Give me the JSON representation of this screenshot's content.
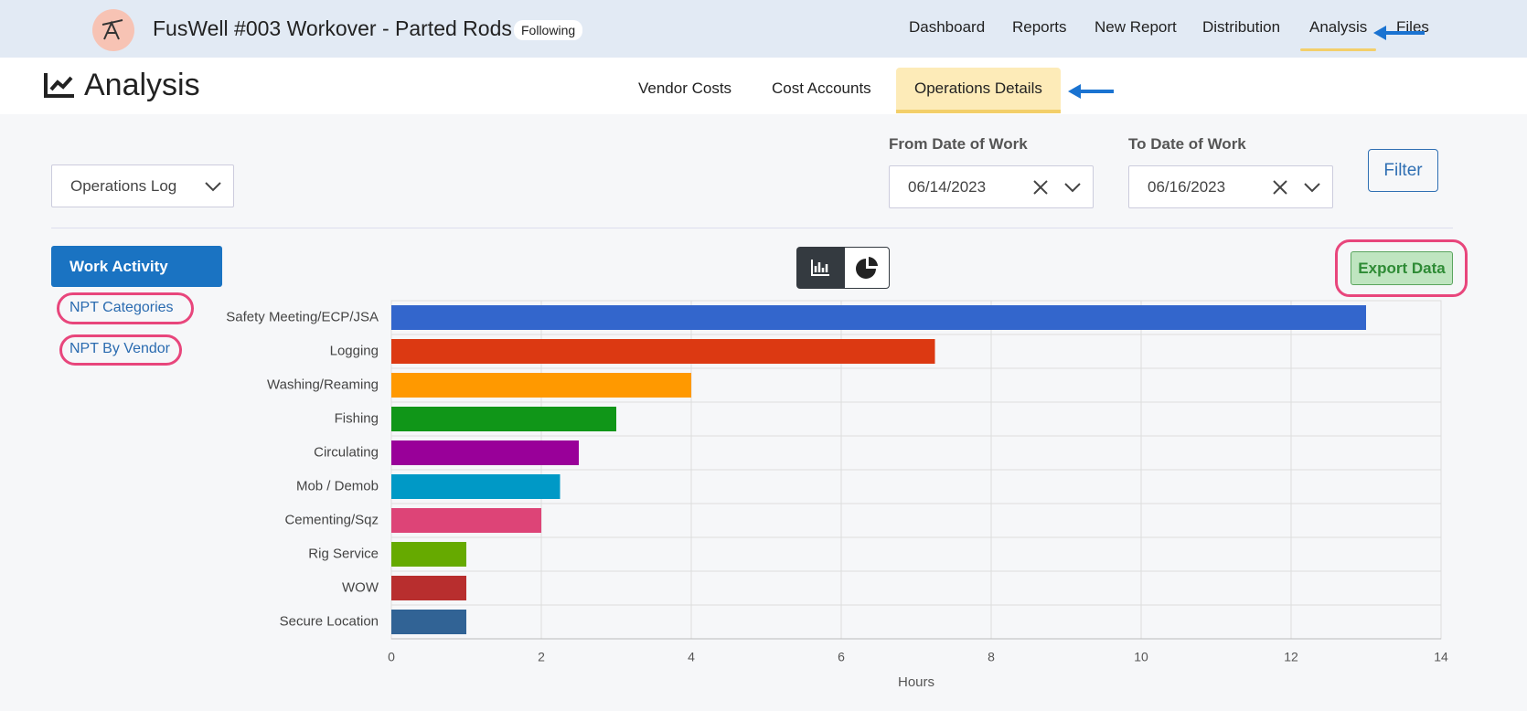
{
  "header": {
    "title": "FusWell #003 Workover - Parted Rods",
    "badge": "Following",
    "nav": [
      "Dashboard",
      "Reports",
      "New Report",
      "Distribution",
      "Analysis",
      "Files"
    ]
  },
  "page": {
    "title": "Analysis",
    "tabs": [
      "Vendor Costs",
      "Cost Accounts",
      "Operations Details"
    ]
  },
  "filters": {
    "dropdown": "Operations Log",
    "from_label": "From Date of Work",
    "from_value": "06/14/2023",
    "to_label": "To Date of Work",
    "to_value": "06/16/2023",
    "button": "Filter"
  },
  "sidebar": [
    "Work Activity",
    "NPT Categories",
    "NPT By Vendor"
  ],
  "export_button": "Export Data",
  "chart_data": {
    "type": "barh",
    "categories": [
      "Safety Meeting/ECP/JSA",
      "Logging",
      "Washing/Reaming",
      "Fishing",
      "Circulating",
      "Mob / Demob",
      "Cementing/Sqz",
      "Rig Service",
      "WOW",
      "Secure Location"
    ],
    "values": [
      13,
      7.25,
      4,
      3,
      2.5,
      2.25,
      2,
      1,
      1,
      1
    ],
    "colors": [
      "#3366cc",
      "#dc3912",
      "#ff9900",
      "#109618",
      "#990099",
      "#0099c6",
      "#dd4477",
      "#66aa00",
      "#b82e2e",
      "#316395"
    ],
    "xlabel": "Hours",
    "xlim": [
      0,
      14
    ],
    "xticks": [
      0,
      2,
      4,
      6,
      8,
      10,
      12,
      14
    ],
    "grid": true
  }
}
